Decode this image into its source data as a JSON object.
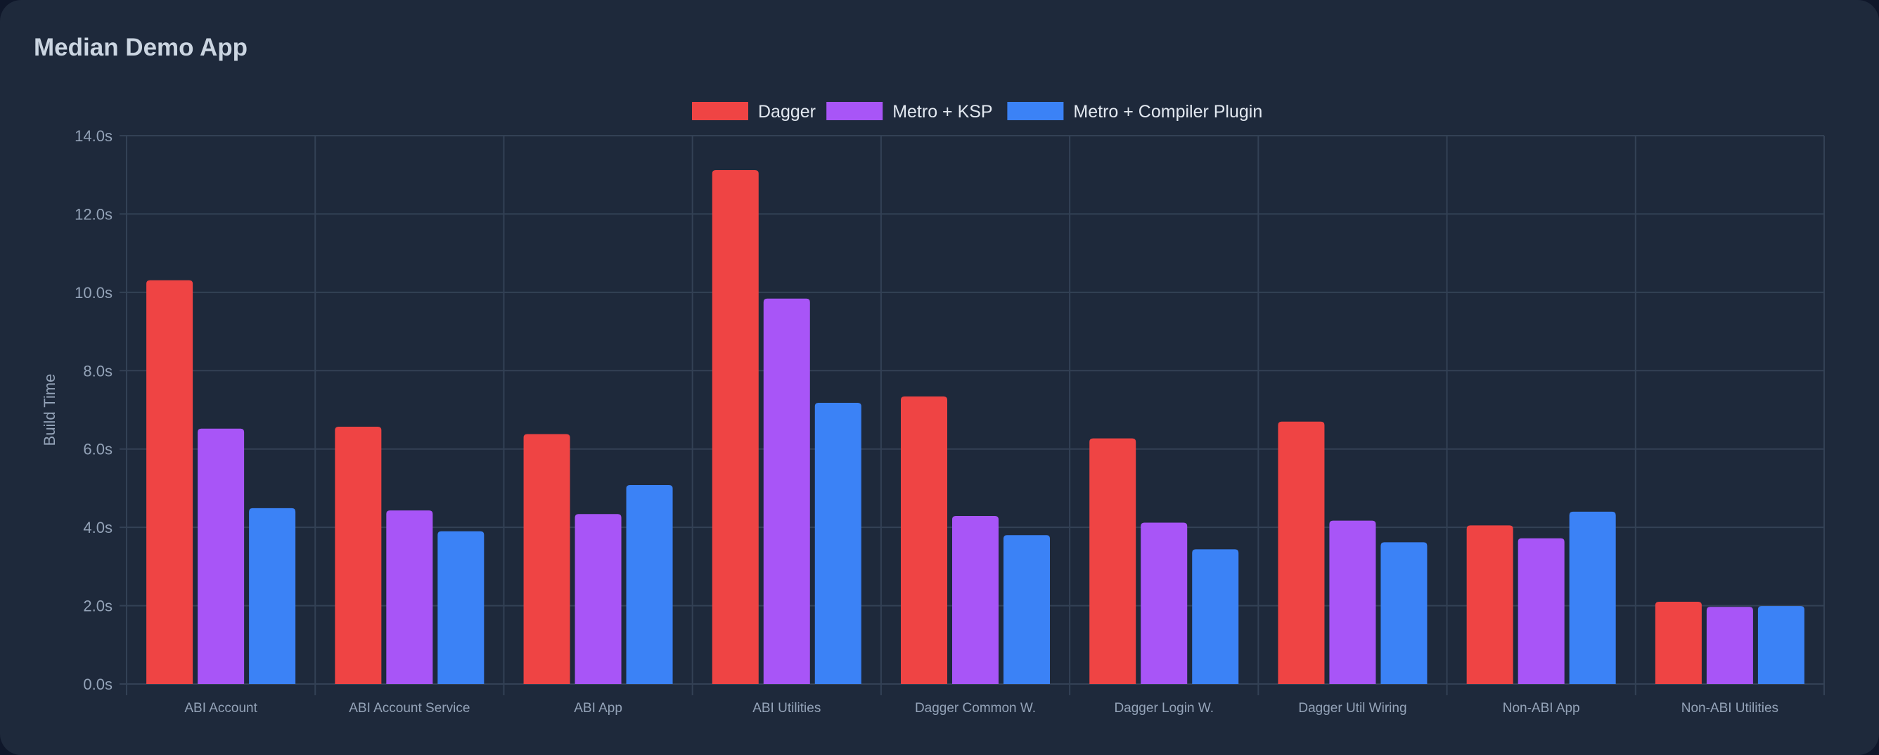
{
  "page": {
    "title": "Median Demo App"
  },
  "chart_data": {
    "type": "bar",
    "title": "",
    "xlabel": "",
    "ylabel": "Build Time",
    "ylim": [
      0,
      14
    ],
    "ytick_step": 2,
    "ytick_labels": [
      "0.0s",
      "2.0s",
      "4.0s",
      "6.0s",
      "8.0s",
      "10.0s",
      "12.0s",
      "14.0s"
    ],
    "grid": true,
    "legend_position": "top-center",
    "categories": [
      "ABI Account",
      "ABI Account Service",
      "ABI App",
      "ABI Utilities",
      "Dagger Common W.",
      "Dagger Login W.",
      "Dagger Util Wiring",
      "Non-ABI App",
      "Non-ABI Utilities"
    ],
    "series": [
      {
        "name": "Dagger",
        "color": "#ef4444",
        "values": [
          10.31,
          6.57,
          6.38,
          13.12,
          7.34,
          6.27,
          6.7,
          4.05,
          2.1
        ]
      },
      {
        "name": "Metro + KSP",
        "color": "#a855f7",
        "values": [
          6.52,
          4.43,
          4.34,
          9.84,
          4.29,
          4.12,
          4.17,
          3.72,
          1.97
        ]
      },
      {
        "name": "Metro + Compiler Plugin",
        "color": "#3b82f6",
        "values": [
          4.49,
          3.9,
          5.08,
          7.18,
          3.8,
          3.44,
          3.62,
          4.4,
          1.99
        ]
      }
    ]
  }
}
